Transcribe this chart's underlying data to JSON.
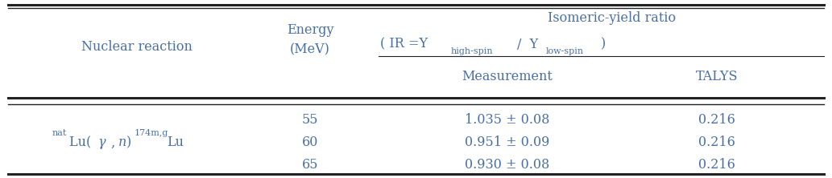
{
  "text_color": "#4a6fa5",
  "bg_color": "#ffffff",
  "border_color": "#222222",
  "col1_label": "Nuclear reaction",
  "col2_label1": "Energy",
  "col2_label2": "(MeV)",
  "top_header": "Isomeric-yield ratio",
  "sub_header_pre": "( IR =Y",
  "sub_high": "high-spin",
  "sub_mid": "/  Y",
  "sub_low": "low-spin",
  "sub_end": ")",
  "meas_label": "Measurement",
  "talys_label": "TALYS",
  "energies": [
    "55",
    "60",
    "65"
  ],
  "measurements": [
    "1.035 ± 0.08",
    "0.951 ± 0.09",
    "0.930 ± 0.08"
  ],
  "talys": [
    "0.216",
    "0.216",
    "0.216"
  ],
  "fig_width": 10.33,
  "fig_height": 2.22,
  "dpi": 100,
  "fs_main": 11.5,
  "fs_sub": 8.0
}
